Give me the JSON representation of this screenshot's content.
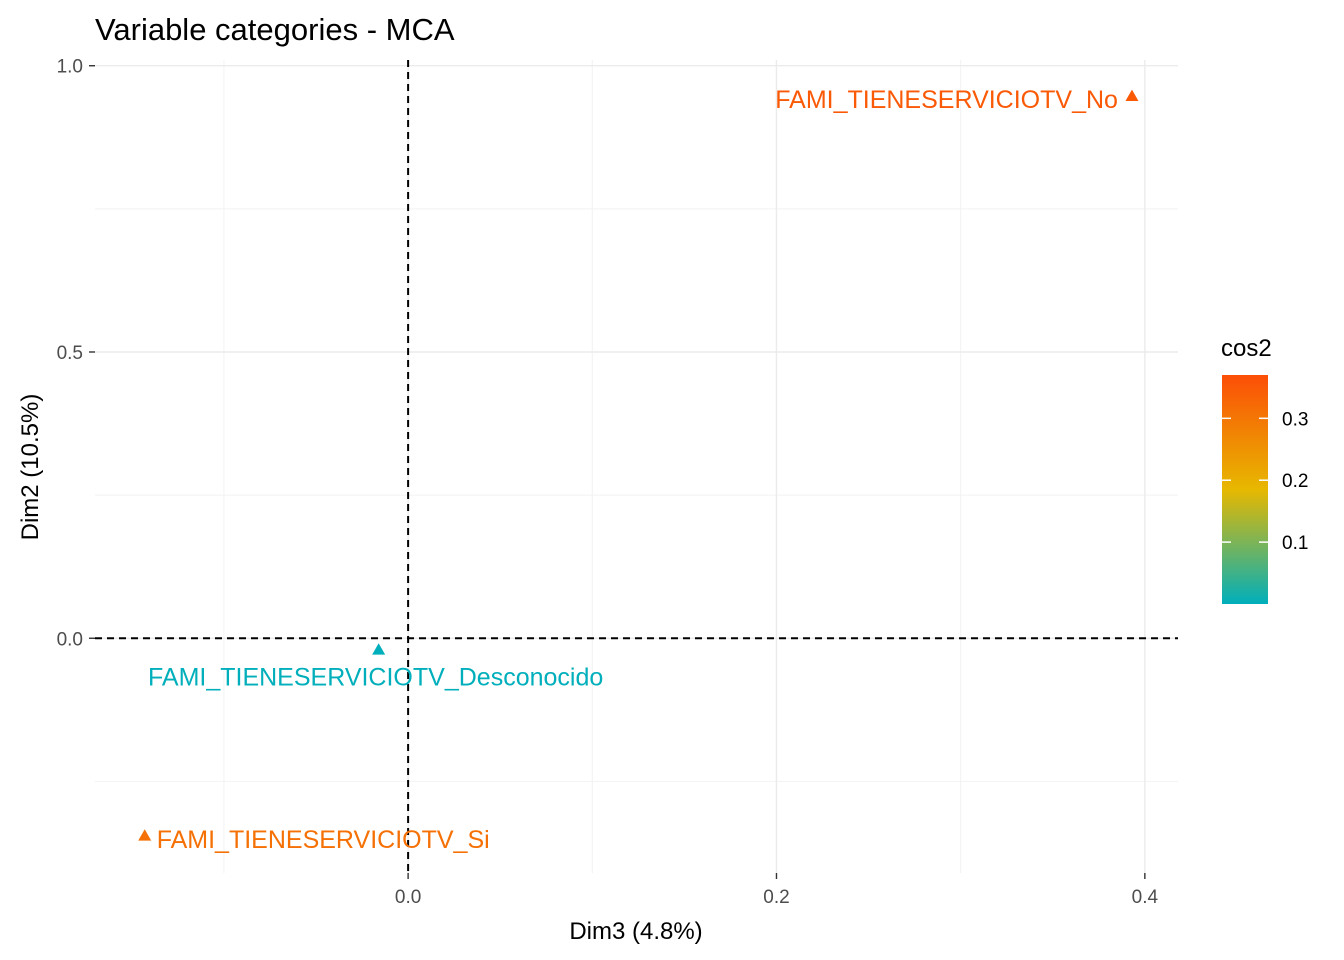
{
  "chart_data": {
    "type": "scatter",
    "title": "Variable categories - MCA",
    "xlabel": "Dim3 (4.8%)",
    "ylabel": "Dim2 (10.5%)",
    "xlim": [
      -0.17,
      0.418
    ],
    "ylim": [
      -0.41,
      1.01
    ],
    "x_ticks": [
      0.0,
      0.2,
      0.4
    ],
    "x_tick_labels": [
      "0.0",
      "0.2",
      "0.4"
    ],
    "y_ticks": [
      0.0,
      0.5,
      1.0
    ],
    "y_tick_labels": [
      "0.0",
      "0.5",
      "1.0"
    ],
    "grid": true,
    "reference_lines": {
      "x": 0,
      "y": 0,
      "style": "dashed"
    },
    "points": [
      {
        "label": "FAMI_TIENESERVICIOTV_No",
        "x": 0.393,
        "y": 0.947,
        "cos2": 0.35
      },
      {
        "label": "FAMI_TIENESERVICIOTV_Desconocido",
        "x": -0.016,
        "y": -0.02,
        "cos2": 0.0
      },
      {
        "label": "FAMI_TIENESERVICIOTV_Si",
        "x": -0.143,
        "y": -0.345,
        "cos2": 0.31
      }
    ],
    "legend": {
      "title": "cos2",
      "position": "right",
      "range": [
        0.0,
        0.37
      ],
      "ticks": [
        0.1,
        0.2,
        0.3
      ],
      "tick_labels": [
        "0.1",
        "0.2",
        "0.3"
      ],
      "colors": [
        "#00AFBB",
        "#E7B800",
        "#FC4E07"
      ]
    }
  }
}
